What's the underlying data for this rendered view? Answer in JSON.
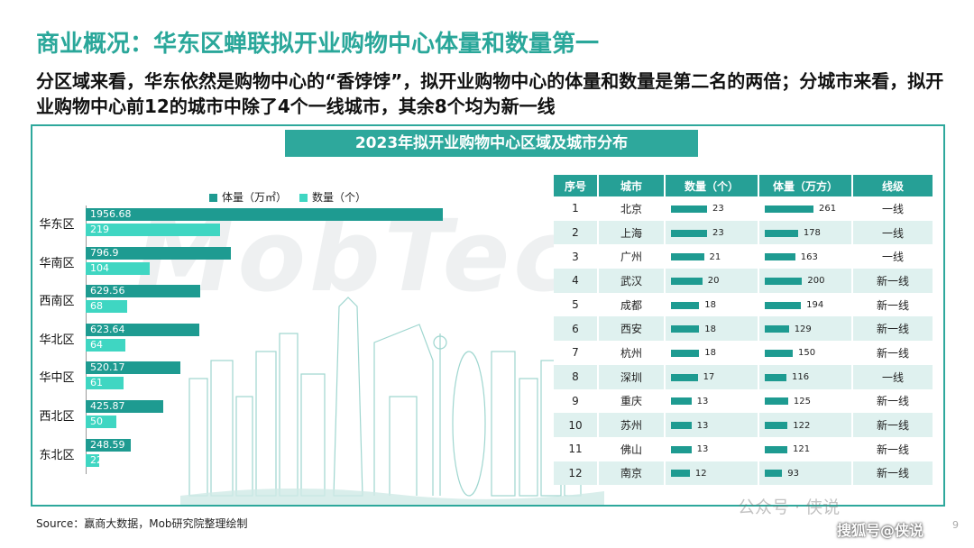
{
  "title": "商业概况：华东区蝉联拟开业购物中心体量和数量第一",
  "subtitle": "分区域来看，华东依然是购物中心的“香饽饽”，拟开业购物中心的体量和数量是第二名的两倍；分城市来看，拟开业购物中心前12的城市中除了4个一线城市，其余8个均为新一线",
  "banner": "2023年拟开业购物中心区域及城市分布",
  "background_watermark": "MobTech",
  "legend": {
    "volume": "体量（万㎡）",
    "count": "数量（个）",
    "volume_color": "#1e9b91",
    "count_color": "#3fd6c2"
  },
  "chart_data": {
    "type": "bar",
    "orientation": "horizontal",
    "categories": [
      "华东区",
      "华南区",
      "西南区",
      "华北区",
      "华中区",
      "西北区",
      "东北区"
    ],
    "series": [
      {
        "name": "体量（万㎡）",
        "values": [
          1956.68,
          796.9,
          629.56,
          623.64,
          520.17,
          425.87,
          248.59
        ]
      },
      {
        "name": "数量（个）",
        "values": [
          219,
          104,
          68,
          64,
          61,
          50,
          22
        ]
      }
    ],
    "value_labels": {
      "volume": [
        "1956.68",
        "796.9",
        "629.56",
        "623.64",
        "520.17",
        "425.87",
        "248.59"
      ],
      "count": [
        "219",
        "104",
        "68",
        "64",
        "61",
        "50",
        "22"
      ]
    }
  },
  "table": {
    "headers": [
      "序号",
      "城市",
      "数量（个）",
      "体量（万方）",
      "线级"
    ],
    "rows": [
      {
        "no": "1",
        "city": "北京",
        "count": 23,
        "volume": 261,
        "tier": "一线"
      },
      {
        "no": "2",
        "city": "上海",
        "count": 23,
        "volume": 178,
        "tier": "一线"
      },
      {
        "no": "3",
        "city": "广州",
        "count": 21,
        "volume": 163,
        "tier": "一线"
      },
      {
        "no": "4",
        "city": "武汉",
        "count": 20,
        "volume": 200,
        "tier": "新一线"
      },
      {
        "no": "5",
        "city": "成都",
        "count": 18,
        "volume": 194,
        "tier": "新一线"
      },
      {
        "no": "6",
        "city": "西安",
        "count": 18,
        "volume": 129,
        "tier": "新一线"
      },
      {
        "no": "7",
        "city": "杭州",
        "count": 18,
        "volume": 150,
        "tier": "新一线"
      },
      {
        "no": "8",
        "city": "深圳",
        "count": 17,
        "volume": 116,
        "tier": "一线"
      },
      {
        "no": "9",
        "city": "重庆",
        "count": 13,
        "volume": 125,
        "tier": "新一线"
      },
      {
        "no": "10",
        "city": "苏州",
        "count": 13,
        "volume": 122,
        "tier": "新一线"
      },
      {
        "no": "11",
        "city": "佛山",
        "count": 13,
        "volume": 121,
        "tier": "新一线"
      },
      {
        "no": "12",
        "city": "南京",
        "count": 12,
        "volume": 93,
        "tier": "新一线"
      }
    ]
  },
  "source": "Source：赢商大数据，Mob研究院整理绘制",
  "watermark_wechat": "公众号 · 侠说",
  "watermark_sohu": "搜狐号@侠说",
  "page_number": "9"
}
